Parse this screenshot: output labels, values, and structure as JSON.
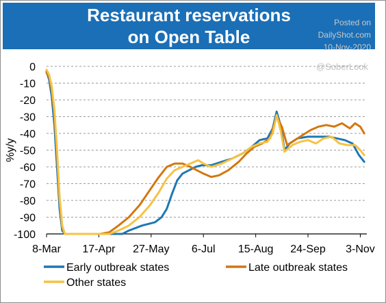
{
  "header": {
    "title_line1": "Restaurant reservations",
    "title_line2": "on Open Table"
  },
  "watermark": {
    "line1": "Posted on",
    "line2": "DailyShot.com",
    "line3": "10-Nov-2020",
    "handle": "@SoberLook"
  },
  "colors": {
    "banner": "#1a6fb6",
    "early": "#1f77b4",
    "late": "#d2770f",
    "other": "#f5c242",
    "grid": "#9a9a9a"
  },
  "chart_data": {
    "type": "line",
    "title": "Restaurant reservations on Open Table",
    "xlabel": "",
    "ylabel": "%y/y",
    "ylim": [
      -100,
      0
    ],
    "yticks": [
      0,
      -10,
      -20,
      -30,
      -40,
      -50,
      -60,
      -70,
      -80,
      -90,
      -100
    ],
    "xlim": [
      "2020-03-08",
      "2020-11-08"
    ],
    "xticks": [
      "8-Mar",
      "17-Apr",
      "27-May",
      "6-Jul",
      "15-Aug",
      "24-Sep",
      "3-Nov"
    ],
    "xtick_dates": [
      "2020-03-08",
      "2020-04-17",
      "2020-05-27",
      "2020-07-06",
      "2020-08-15",
      "2020-09-24",
      "2020-11-03"
    ],
    "grid": "horizontal dashed",
    "legend_position": "bottom",
    "series": [
      {
        "name": "Early outbreak states",
        "color": "#1f77b4",
        "points": [
          [
            "2020-03-08",
            -3
          ],
          [
            "2020-03-10",
            -8
          ],
          [
            "2020-03-12",
            -18
          ],
          [
            "2020-03-14",
            -35
          ],
          [
            "2020-03-16",
            -60
          ],
          [
            "2020-03-18",
            -85
          ],
          [
            "2020-03-20",
            -98
          ],
          [
            "2020-03-22",
            -100
          ],
          [
            "2020-04-20",
            -100
          ],
          [
            "2020-05-05",
            -100
          ],
          [
            "2020-05-10",
            -98
          ],
          [
            "2020-05-20",
            -95
          ],
          [
            "2020-05-30",
            -93
          ],
          [
            "2020-06-04",
            -90
          ],
          [
            "2020-06-08",
            -85
          ],
          [
            "2020-06-12",
            -76
          ],
          [
            "2020-06-16",
            -68
          ],
          [
            "2020-06-20",
            -64
          ],
          [
            "2020-06-25",
            -62
          ],
          [
            "2020-06-30",
            -60
          ],
          [
            "2020-07-05",
            -59
          ],
          [
            "2020-07-12",
            -59
          ],
          [
            "2020-07-20",
            -57
          ],
          [
            "2020-07-28",
            -55
          ],
          [
            "2020-08-05",
            -52
          ],
          [
            "2020-08-12",
            -48
          ],
          [
            "2020-08-18",
            -44
          ],
          [
            "2020-08-24",
            -43
          ],
          [
            "2020-08-28",
            -37
          ],
          [
            "2020-08-31",
            -27
          ],
          [
            "2020-09-03",
            -35
          ],
          [
            "2020-09-06",
            -50
          ],
          [
            "2020-09-10",
            -46
          ],
          [
            "2020-09-16",
            -43
          ],
          [
            "2020-09-24",
            -42
          ],
          [
            "2020-10-02",
            -42
          ],
          [
            "2020-10-10",
            -42
          ],
          [
            "2020-10-16",
            -43
          ],
          [
            "2020-10-22",
            -44
          ],
          [
            "2020-10-28",
            -46
          ],
          [
            "2020-11-02",
            -53
          ],
          [
            "2020-11-06",
            -57
          ]
        ]
      },
      {
        "name": "Late outbreak states",
        "color": "#d2770f",
        "points": [
          [
            "2020-03-08",
            -4
          ],
          [
            "2020-03-10",
            -6
          ],
          [
            "2020-03-12",
            -14
          ],
          [
            "2020-03-14",
            -28
          ],
          [
            "2020-03-16",
            -52
          ],
          [
            "2020-03-18",
            -80
          ],
          [
            "2020-03-20",
            -96
          ],
          [
            "2020-03-22",
            -100
          ],
          [
            "2020-04-18",
            -100
          ],
          [
            "2020-04-25",
            -99
          ],
          [
            "2020-05-02",
            -95
          ],
          [
            "2020-05-10",
            -90
          ],
          [
            "2020-05-18",
            -83
          ],
          [
            "2020-05-25",
            -75
          ],
          [
            "2020-06-01",
            -67
          ],
          [
            "2020-06-08",
            -60
          ],
          [
            "2020-06-14",
            -58
          ],
          [
            "2020-06-20",
            -58
          ],
          [
            "2020-06-26",
            -60
          ],
          [
            "2020-07-01",
            -62
          ],
          [
            "2020-07-06",
            -64
          ],
          [
            "2020-07-12",
            -66
          ],
          [
            "2020-07-18",
            -65
          ],
          [
            "2020-07-25",
            -62
          ],
          [
            "2020-08-02",
            -57
          ],
          [
            "2020-08-08",
            -52
          ],
          [
            "2020-08-14",
            -48
          ],
          [
            "2020-08-20",
            -46
          ],
          [
            "2020-08-26",
            -43
          ],
          [
            "2020-08-31",
            -30
          ],
          [
            "2020-09-04",
            -36
          ],
          [
            "2020-09-08",
            -47
          ],
          [
            "2020-09-14",
            -44
          ],
          [
            "2020-09-20",
            -41
          ],
          [
            "2020-09-26",
            -38
          ],
          [
            "2020-10-02",
            -36
          ],
          [
            "2020-10-08",
            -35
          ],
          [
            "2020-10-14",
            -36
          ],
          [
            "2020-10-20",
            -34
          ],
          [
            "2020-10-26",
            -37
          ],
          [
            "2020-10-30",
            -34
          ],
          [
            "2020-11-03",
            -36
          ],
          [
            "2020-11-06",
            -40
          ]
        ]
      },
      {
        "name": "Other states",
        "color": "#f5c242",
        "points": [
          [
            "2020-03-08",
            -2
          ],
          [
            "2020-03-10",
            -5
          ],
          [
            "2020-03-12",
            -12
          ],
          [
            "2020-03-14",
            -26
          ],
          [
            "2020-03-16",
            -50
          ],
          [
            "2020-03-18",
            -78
          ],
          [
            "2020-03-20",
            -95
          ],
          [
            "2020-03-22",
            -100
          ],
          [
            "2020-04-25",
            -100
          ],
          [
            "2020-05-02",
            -98
          ],
          [
            "2020-05-10",
            -95
          ],
          [
            "2020-05-18",
            -90
          ],
          [
            "2020-05-26",
            -83
          ],
          [
            "2020-06-02",
            -75
          ],
          [
            "2020-06-08",
            -67
          ],
          [
            "2020-06-14",
            -62
          ],
          [
            "2020-06-20",
            -60
          ],
          [
            "2020-06-26",
            -58
          ],
          [
            "2020-07-02",
            -56
          ],
          [
            "2020-07-06",
            -58
          ],
          [
            "2020-07-12",
            -60
          ],
          [
            "2020-07-20",
            -58
          ],
          [
            "2020-07-28",
            -55
          ],
          [
            "2020-08-05",
            -52
          ],
          [
            "2020-08-12",
            -48
          ],
          [
            "2020-08-18",
            -46
          ],
          [
            "2020-08-24",
            -45
          ],
          [
            "2020-08-28",
            -40
          ],
          [
            "2020-08-31",
            -29
          ],
          [
            "2020-09-03",
            -38
          ],
          [
            "2020-09-06",
            -51
          ],
          [
            "2020-09-12",
            -47
          ],
          [
            "2020-09-18",
            -45
          ],
          [
            "2020-09-24",
            -44
          ],
          [
            "2020-09-30",
            -46
          ],
          [
            "2020-10-06",
            -43
          ],
          [
            "2020-10-12",
            -42
          ],
          [
            "2020-10-18",
            -46
          ],
          [
            "2020-10-24",
            -47
          ],
          [
            "2020-10-30",
            -47
          ],
          [
            "2020-11-03",
            -50
          ],
          [
            "2020-11-06",
            -53
          ]
        ]
      }
    ]
  }
}
